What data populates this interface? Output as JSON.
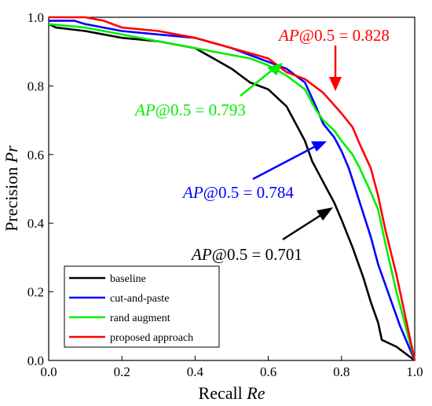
{
  "chart_data": {
    "type": "line",
    "xlabel": "Recall",
    "xlabel_symbol": "Re",
    "ylabel": "Precision",
    "ylabel_symbol": "Pr",
    "xlim": [
      0,
      1
    ],
    "ylim": [
      0,
      1
    ],
    "x_ticks": [
      "0.0",
      "0.2",
      "0.4",
      "0.6",
      "0.8",
      "1.0"
    ],
    "y_ticks": [
      "0.0",
      "0.2",
      "0.4",
      "0.6",
      "0.8",
      "1.0"
    ],
    "grid": false,
    "legend_position": "bottom-left",
    "series": [
      {
        "name": "baseline",
        "color": "#000000",
        "x": [
          0.0,
          0.02,
          0.1,
          0.2,
          0.3,
          0.4,
          0.45,
          0.5,
          0.55,
          0.6,
          0.65,
          0.7,
          0.72,
          0.75,
          0.78,
          0.8,
          0.83,
          0.86,
          0.88,
          0.9,
          0.91,
          0.95,
          1.0
        ],
        "y": [
          0.98,
          0.97,
          0.96,
          0.94,
          0.93,
          0.91,
          0.88,
          0.85,
          0.81,
          0.79,
          0.74,
          0.64,
          0.58,
          0.52,
          0.46,
          0.41,
          0.33,
          0.24,
          0.17,
          0.11,
          0.06,
          0.04,
          0.0
        ]
      },
      {
        "name": "cut-and-paste",
        "color": "#0000ff",
        "x": [
          0.0,
          0.07,
          0.1,
          0.2,
          0.3,
          0.4,
          0.5,
          0.55,
          0.6,
          0.65,
          0.7,
          0.73,
          0.75,
          0.78,
          0.8,
          0.82,
          0.85,
          0.88,
          0.9,
          0.93,
          0.96,
          1.0
        ],
        "y": [
          0.99,
          0.99,
          0.98,
          0.96,
          0.95,
          0.94,
          0.91,
          0.89,
          0.87,
          0.85,
          0.81,
          0.74,
          0.69,
          0.65,
          0.61,
          0.56,
          0.46,
          0.36,
          0.28,
          0.19,
          0.1,
          0.0
        ]
      },
      {
        "name": "rand augment",
        "color": "#00ee00",
        "x": [
          0.0,
          0.1,
          0.2,
          0.3,
          0.4,
          0.5,
          0.55,
          0.6,
          0.65,
          0.7,
          0.73,
          0.75,
          0.78,
          0.8,
          0.83,
          0.85,
          0.88,
          0.9,
          0.92,
          0.95,
          1.0
        ],
        "y": [
          0.98,
          0.97,
          0.95,
          0.93,
          0.91,
          0.89,
          0.88,
          0.86,
          0.83,
          0.79,
          0.73,
          0.7,
          0.67,
          0.64,
          0.6,
          0.56,
          0.49,
          0.44,
          0.34,
          0.2,
          0.0
        ]
      },
      {
        "name": "proposed approach",
        "color": "#ff0000",
        "x": [
          0.0,
          0.1,
          0.15,
          0.2,
          0.3,
          0.4,
          0.5,
          0.6,
          0.65,
          0.7,
          0.75,
          0.8,
          0.83,
          0.85,
          0.88,
          0.9,
          0.92,
          0.95,
          0.97,
          1.0
        ],
        "y": [
          1.0,
          1.0,
          0.99,
          0.97,
          0.96,
          0.94,
          0.91,
          0.88,
          0.84,
          0.82,
          0.78,
          0.72,
          0.68,
          0.63,
          0.56,
          0.48,
          0.38,
          0.25,
          0.15,
          0.0
        ]
      }
    ],
    "annotations": [
      {
        "prefix": "AP",
        "suffix": "@0.5 = 0.828",
        "color": "#ff0000"
      },
      {
        "prefix": "AP",
        "suffix": "@0.5 = 0.793",
        "color": "#00ee00"
      },
      {
        "prefix": "AP",
        "suffix": "@0.5 = 0.784",
        "color": "#0000ff"
      },
      {
        "prefix": "AP",
        "suffix": "@0.5 = 0.701",
        "color": "#000000"
      }
    ]
  }
}
